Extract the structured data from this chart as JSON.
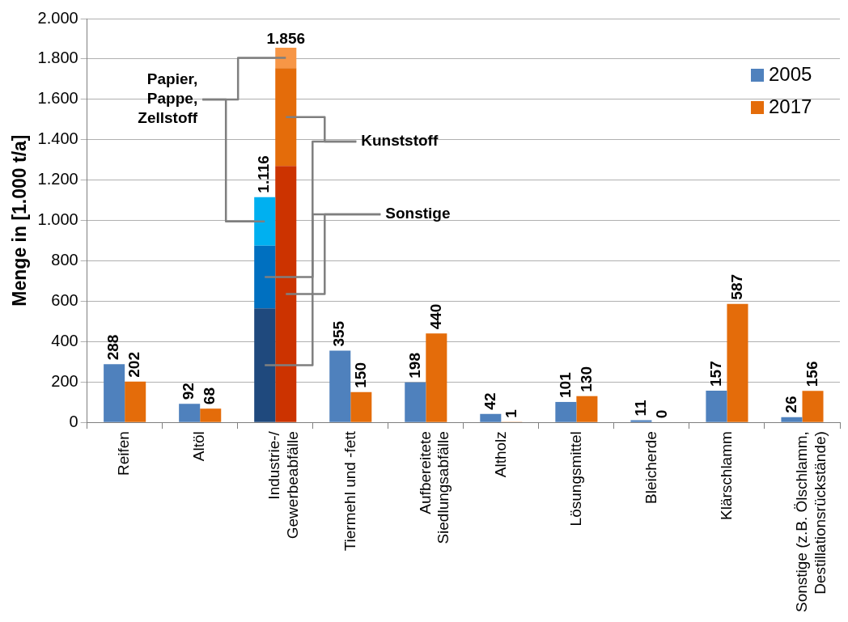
{
  "chart_data": {
    "type": "bar",
    "ylabel": "Menge in [1.000 t/a]",
    "categories": [
      "Reifen",
      "Altöl",
      "Industrie-/\nGewerbeabfälle",
      "Tiermehl und -fett",
      "Aufbereitete\nSiedlungsabfälle",
      "Altholz",
      "Lösungsmittel",
      "Bleicherde",
      "Klärschlamm",
      "Sonstige (z.B. Ölschlamm,\nDestillationsrückstände)"
    ],
    "series": [
      {
        "name": "2005",
        "color": "#4f81bd",
        "colors": [
          "#4f81bd",
          "#4f81bd",
          "#1f497d",
          "#4f81bd",
          "#4f81bd",
          "#4f81bd",
          "#4f81bd",
          "#4f81bd",
          "#4f81bd",
          "#4f81bd"
        ],
        "values": [
          288,
          92,
          565,
          355,
          198,
          42,
          101,
          11,
          157,
          26
        ],
        "value_labels": [
          "288",
          "92",
          null,
          "355",
          "198",
          "42",
          "101",
          "11",
          "157",
          "26"
        ]
      },
      {
        "color": "#0070c0",
        "values": [
          null,
          null,
          310,
          null,
          null,
          null,
          null,
          null,
          null,
          null
        ],
        "base": [
          null,
          null,
          565,
          null,
          null,
          null,
          null,
          null,
          null,
          null
        ]
      },
      {
        "color": "#00b0f0",
        "values": [
          null,
          null,
          241,
          null,
          null,
          null,
          null,
          null,
          null,
          null
        ],
        "base": [
          null,
          null,
          875,
          null,
          null,
          null,
          null,
          null,
          null,
          null
        ]
      },
      {
        "name": "2017",
        "color": "#e46c0a",
        "colors": [
          "#e46c0a",
          "#e46c0a",
          "#cc3300",
          "#e46c0a",
          "#e46c0a",
          "#e46c0a",
          "#e46c0a",
          "#e46c0a",
          "#e46c0a",
          "#e46c0a"
        ],
        "values": [
          202,
          68,
          1270,
          150,
          440,
          1,
          130,
          0,
          587,
          156
        ],
        "value_labels": [
          "202",
          "68",
          null,
          "150",
          "440",
          "1",
          "130",
          "0",
          "587",
          "156"
        ]
      },
      {
        "color": "#e46c0a",
        "values": [
          null,
          null,
          485,
          null,
          null,
          null,
          null,
          null,
          null,
          null
        ],
        "base": [
          null,
          null,
          1270,
          null,
          null,
          null,
          null,
          null,
          null,
          null
        ]
      },
      {
        "color": "#f79646",
        "values": [
          null,
          null,
          101,
          null,
          null,
          null,
          null,
          null,
          null,
          null
        ],
        "base": [
          null,
          null,
          1755,
          null,
          null,
          null,
          null,
          null,
          null,
          null
        ]
      }
    ],
    "totals": [
      [
        null,
        null,
        "1.116",
        null,
        null,
        null,
        null,
        null,
        null,
        null
      ],
      [
        null,
        null,
        "1.856",
        null,
        null,
        null,
        null,
        null,
        null,
        null
      ]
    ],
    "annotations": [
      "Papier,\nPappe,\nZellstoff",
      "Kunststoff",
      "Sonstige"
    ],
    "ylim": [
      0,
      2000
    ],
    "yticks": [
      {
        "value": 0,
        "label": "0"
      },
      {
        "value": 200,
        "label": "200"
      },
      {
        "value": 400,
        "label": "400"
      },
      {
        "value": 600,
        "label": "600"
      },
      {
        "value": 800,
        "label": "800"
      },
      {
        "value": 1000,
        "label": "1.000"
      },
      {
        "value": 1200,
        "label": "1.200"
      },
      {
        "value": 1400,
        "label": "1.400"
      },
      {
        "value": 1600,
        "label": "1.600"
      },
      {
        "value": 1800,
        "label": "1.800"
      },
      {
        "value": 2000,
        "label": "2.000"
      }
    ],
    "grid": "y",
    "legend": "top right"
  }
}
